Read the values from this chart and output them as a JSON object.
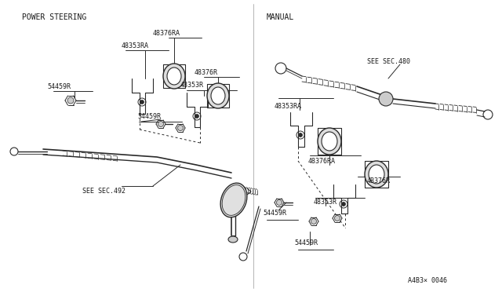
{
  "background_color": "#ffffff",
  "line_color": "#2a2a2a",
  "text_color": "#1a1a1a",
  "fig_width": 6.4,
  "fig_height": 3.72,
  "dpi": 100,
  "left_title": "POWER STEERING",
  "right_title": "MANUAL",
  "watermark": "A4B3× 0046"
}
